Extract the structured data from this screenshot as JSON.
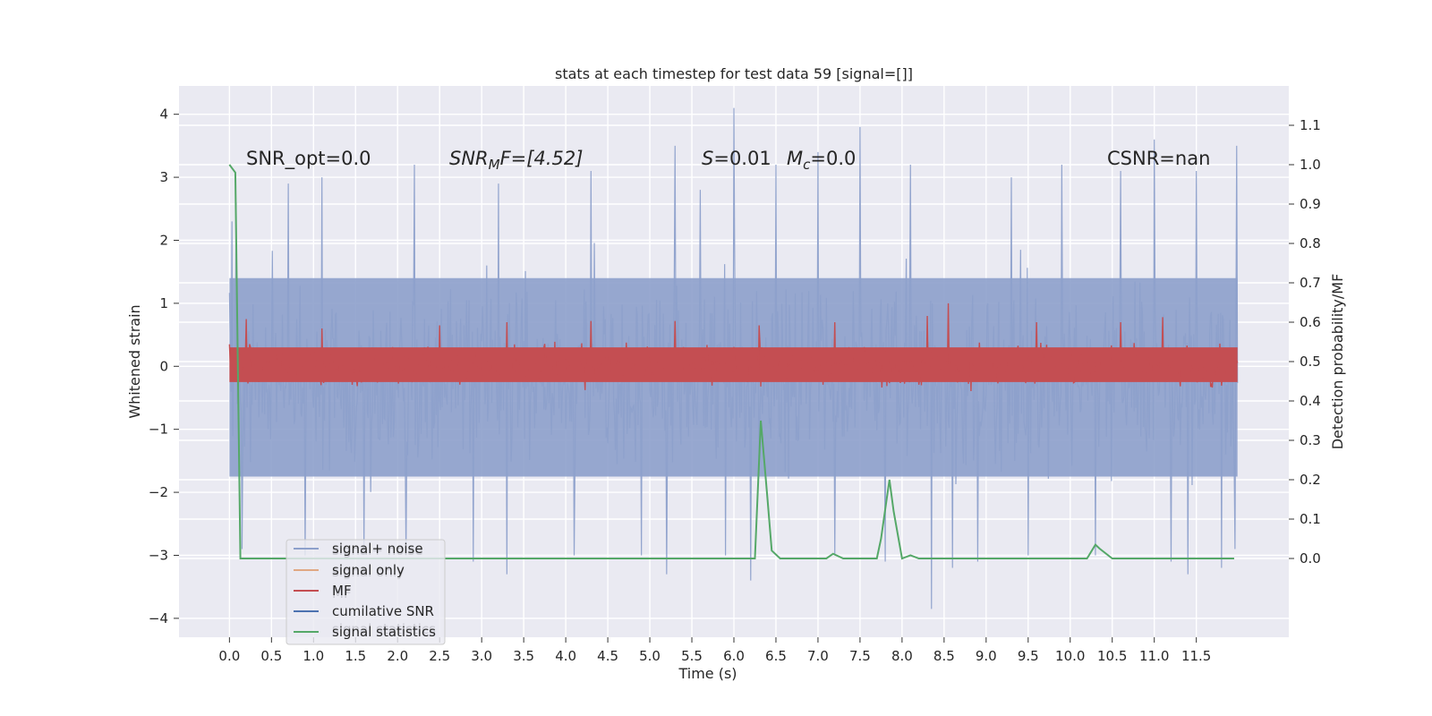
{
  "chart_data": {
    "type": "line",
    "title": "stats at each timestep for test data 59 [signal=[]]",
    "xlabel": "Time (s)",
    "ylabel_left": "Whitened strain",
    "ylabel_right": "Detection probability/MF",
    "xlim": [
      -0.6,
      12.6
    ],
    "ylim_left": [
      -4.3,
      4.45
    ],
    "ylim_right": [
      -0.2,
      1.2
    ],
    "x_ticks": [
      0.0,
      0.5,
      1.0,
      1.5,
      2.0,
      2.5,
      3.0,
      3.5,
      4.0,
      4.5,
      5.0,
      5.5,
      6.0,
      6.5,
      7.0,
      7.5,
      8.0,
      8.5,
      9.0,
      9.5,
      10.0,
      10.5,
      11.0,
      11.5
    ],
    "x_tick_labels": [
      "0.0",
      "0.5",
      "1.0",
      "1.5",
      "2.0",
      "2.5",
      "3.0",
      "3.5",
      "4.0",
      "4.5",
      "5.0",
      "5.5",
      "6.0",
      "6.5",
      "7.0",
      "7.5",
      "8.0",
      "8.5",
      "9.0",
      "9.5",
      "10.0",
      "10.5",
      "11.0",
      "11.5"
    ],
    "y_left_ticks": [
      -4,
      -3,
      -2,
      -1,
      0,
      1,
      2,
      3,
      4
    ],
    "y_left_tick_labels": [
      "−4",
      "−3",
      "−2",
      "−1",
      "0",
      "1",
      "2",
      "3",
      "4"
    ],
    "y_right_ticks": [
      0.0,
      0.1,
      0.2,
      0.3,
      0.4,
      0.5,
      0.6,
      0.7,
      0.8,
      0.9,
      1.0,
      1.1
    ],
    "y_right_tick_labels": [
      "0.0",
      "0.1",
      "0.2",
      "0.3",
      "0.4",
      "0.5",
      "0.6",
      "0.7",
      "0.8",
      "0.9",
      "1.0",
      "1.1"
    ],
    "grid": true,
    "legend_placement": "lower-left",
    "legend": [
      {
        "label": "signal+ noise",
        "color": "#8da0cb"
      },
      {
        "label": "signal only",
        "color": "#e0a883"
      },
      {
        "label": "MF",
        "color": "#c44e52"
      },
      {
        "label": "cumilative SNR",
        "color": "#4c72b0"
      },
      {
        "label": "signal statistics",
        "color": "#55a868"
      }
    ],
    "legend_ghost_labels": [
      "signal+ noise",
      "signal only",
      "MF",
      "signal statistics"
    ],
    "annotations": {
      "snr_opt": "SNR_opt=0.0",
      "snr_mf_main": "SNR",
      "snr_mf_sub": "M",
      "snr_mf_rest": "F=[4.52]",
      "s_var": "S",
      "s_rest": "=0.01",
      "mc_var": "M",
      "mc_sub": "c",
      "mc_rest": "=0.0",
      "csnr": "CSNR=nan"
    },
    "series": [
      {
        "name": "signal+ noise",
        "axis": "left",
        "color": "#8da0cb",
        "t_start": 0.0,
        "t_end": 11.99,
        "n_samples": 1200,
        "typical_envelope": [
          -1.7,
          1.4
        ],
        "peaks": [
          [
            0.03,
            2.3
          ],
          [
            0.08,
            2.6
          ],
          [
            0.7,
            2.9
          ],
          [
            1.1,
            3.0
          ],
          [
            2.2,
            3.2
          ],
          [
            3.2,
            2.9
          ],
          [
            4.3,
            3.1
          ],
          [
            5.3,
            3.5
          ],
          [
            5.6,
            2.8
          ],
          [
            6.0,
            4.1
          ],
          [
            6.5,
            3.2
          ],
          [
            7.0,
            3.4
          ],
          [
            7.5,
            3.8
          ],
          [
            8.1,
            3.2
          ],
          [
            8.6,
            2.9
          ],
          [
            9.3,
            3.0
          ],
          [
            9.9,
            3.2
          ],
          [
            10.6,
            3.1
          ],
          [
            11.0,
            3.6
          ],
          [
            11.5,
            3.1
          ],
          [
            11.98,
            3.5
          ]
        ],
        "troughs": [
          [
            0.15,
            -2.9
          ],
          [
            0.9,
            -3.0
          ],
          [
            1.6,
            -2.9
          ],
          [
            2.1,
            -3.0
          ],
          [
            2.9,
            -3.1
          ],
          [
            3.3,
            -3.3
          ],
          [
            4.1,
            -3.0
          ],
          [
            4.9,
            -3.0
          ],
          [
            5.2,
            -3.3
          ],
          [
            5.9,
            -3.0
          ],
          [
            6.2,
            -3.4
          ],
          [
            7.2,
            -3.0
          ],
          [
            7.8,
            -3.1
          ],
          [
            8.35,
            -3.85
          ],
          [
            8.6,
            -3.2
          ],
          [
            8.9,
            -3.1
          ],
          [
            9.5,
            -3.0
          ],
          [
            10.3,
            -3.0
          ],
          [
            11.2,
            -3.1
          ],
          [
            11.4,
            -3.3
          ],
          [
            11.8,
            -3.2
          ],
          [
            11.96,
            -2.9
          ]
        ]
      },
      {
        "name": "MF",
        "axis": "left",
        "color": "#c44e52",
        "t_start": 0.0,
        "t_end": 11.99,
        "n_samples": 1200,
        "typical_envelope": [
          -0.35,
          0.45
        ],
        "peaks": [
          [
            0.2,
            0.75
          ],
          [
            1.1,
            0.6
          ],
          [
            2.5,
            0.65
          ],
          [
            3.3,
            0.7
          ],
          [
            4.3,
            0.72
          ],
          [
            5.3,
            0.72
          ],
          [
            6.3,
            0.65
          ],
          [
            7.2,
            0.7
          ],
          [
            8.3,
            0.8
          ],
          [
            8.55,
            1.0
          ],
          [
            9.6,
            0.7
          ],
          [
            10.6,
            0.7
          ],
          [
            11.1,
            0.78
          ]
        ]
      },
      {
        "name": "signal statistics",
        "axis": "right",
        "color": "#55a868",
        "x": [
          0.0,
          0.07,
          0.13,
          0.2,
          0.5,
          1.0,
          1.5,
          2.0,
          2.5,
          3.0,
          3.5,
          4.0,
          4.5,
          5.0,
          5.5,
          6.0,
          6.1,
          6.25,
          6.32,
          6.4,
          6.45,
          6.55,
          6.65,
          7.0,
          7.1,
          7.18,
          7.3,
          7.5,
          7.7,
          7.75,
          7.85,
          7.9,
          8.0,
          8.1,
          8.2,
          8.3,
          8.5,
          9.0,
          9.5,
          10.0,
          10.1,
          10.2,
          10.3,
          10.35,
          10.5,
          11.0,
          11.5,
          11.7,
          11.9,
          11.95
        ],
        "y": [
          1.0,
          0.98,
          0.0,
          0.0,
          0.0,
          0.0,
          0.0,
          0.0,
          0.0,
          0.0,
          0.0,
          0.0,
          0.0,
          0.0,
          0.0,
          0.0,
          0.0,
          0.0,
          0.35,
          0.15,
          0.02,
          0.0,
          0.0,
          0.0,
          0.0,
          0.012,
          0.0,
          0.0,
          0.0,
          0.05,
          0.2,
          0.12,
          0.0,
          0.008,
          0.0,
          0.0,
          0.0,
          0.0,
          0.0,
          0.0,
          0.0,
          0.0,
          0.035,
          0.025,
          0.0,
          0.0,
          0.0,
          0.0,
          0.0,
          0.0
        ]
      }
    ]
  }
}
